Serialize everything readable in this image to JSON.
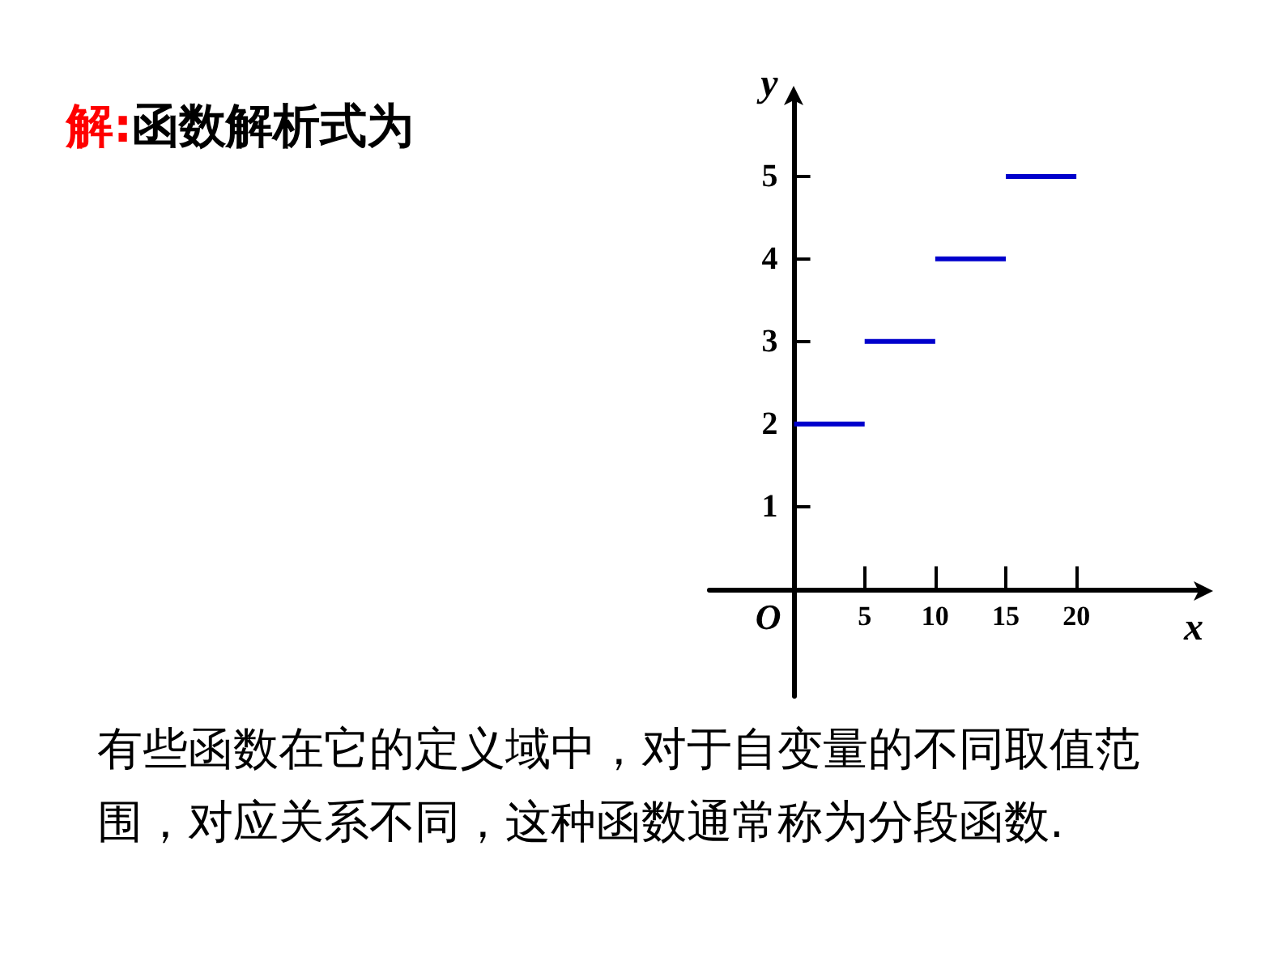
{
  "chart_data": {
    "type": "line",
    "title": "解:函数解析式为",
    "xlabel": "x",
    "ylabel": "y",
    "series": [
      {
        "color": "#0000cc",
        "x": [
          0,
          5
        ],
        "values": [
          2,
          2
        ]
      },
      {
        "color": "#0000cc",
        "x": [
          5,
          10
        ],
        "values": [
          3,
          3
        ]
      },
      {
        "color": "#0000cc",
        "x": [
          10,
          15
        ],
        "values": [
          4,
          4
        ]
      },
      {
        "color": "#0000cc",
        "x": [
          15,
          20
        ],
        "values": [
          5,
          5
        ]
      }
    ],
    "xlim": [
      -6,
      29
    ],
    "ylim": [
      -1.3,
      6
    ],
    "xticks": [
      5,
      10,
      15,
      20
    ],
    "yticks": [
      1,
      2,
      3,
      4,
      5
    ],
    "grid": false,
    "marker": "none",
    "line_style": "solid",
    "annotations": [
      "O",
      "有些函数在它的定义域中，对于自变量的不同取值范围，对应关系不同，这种函数通常称为分段函数."
    ]
  }
}
